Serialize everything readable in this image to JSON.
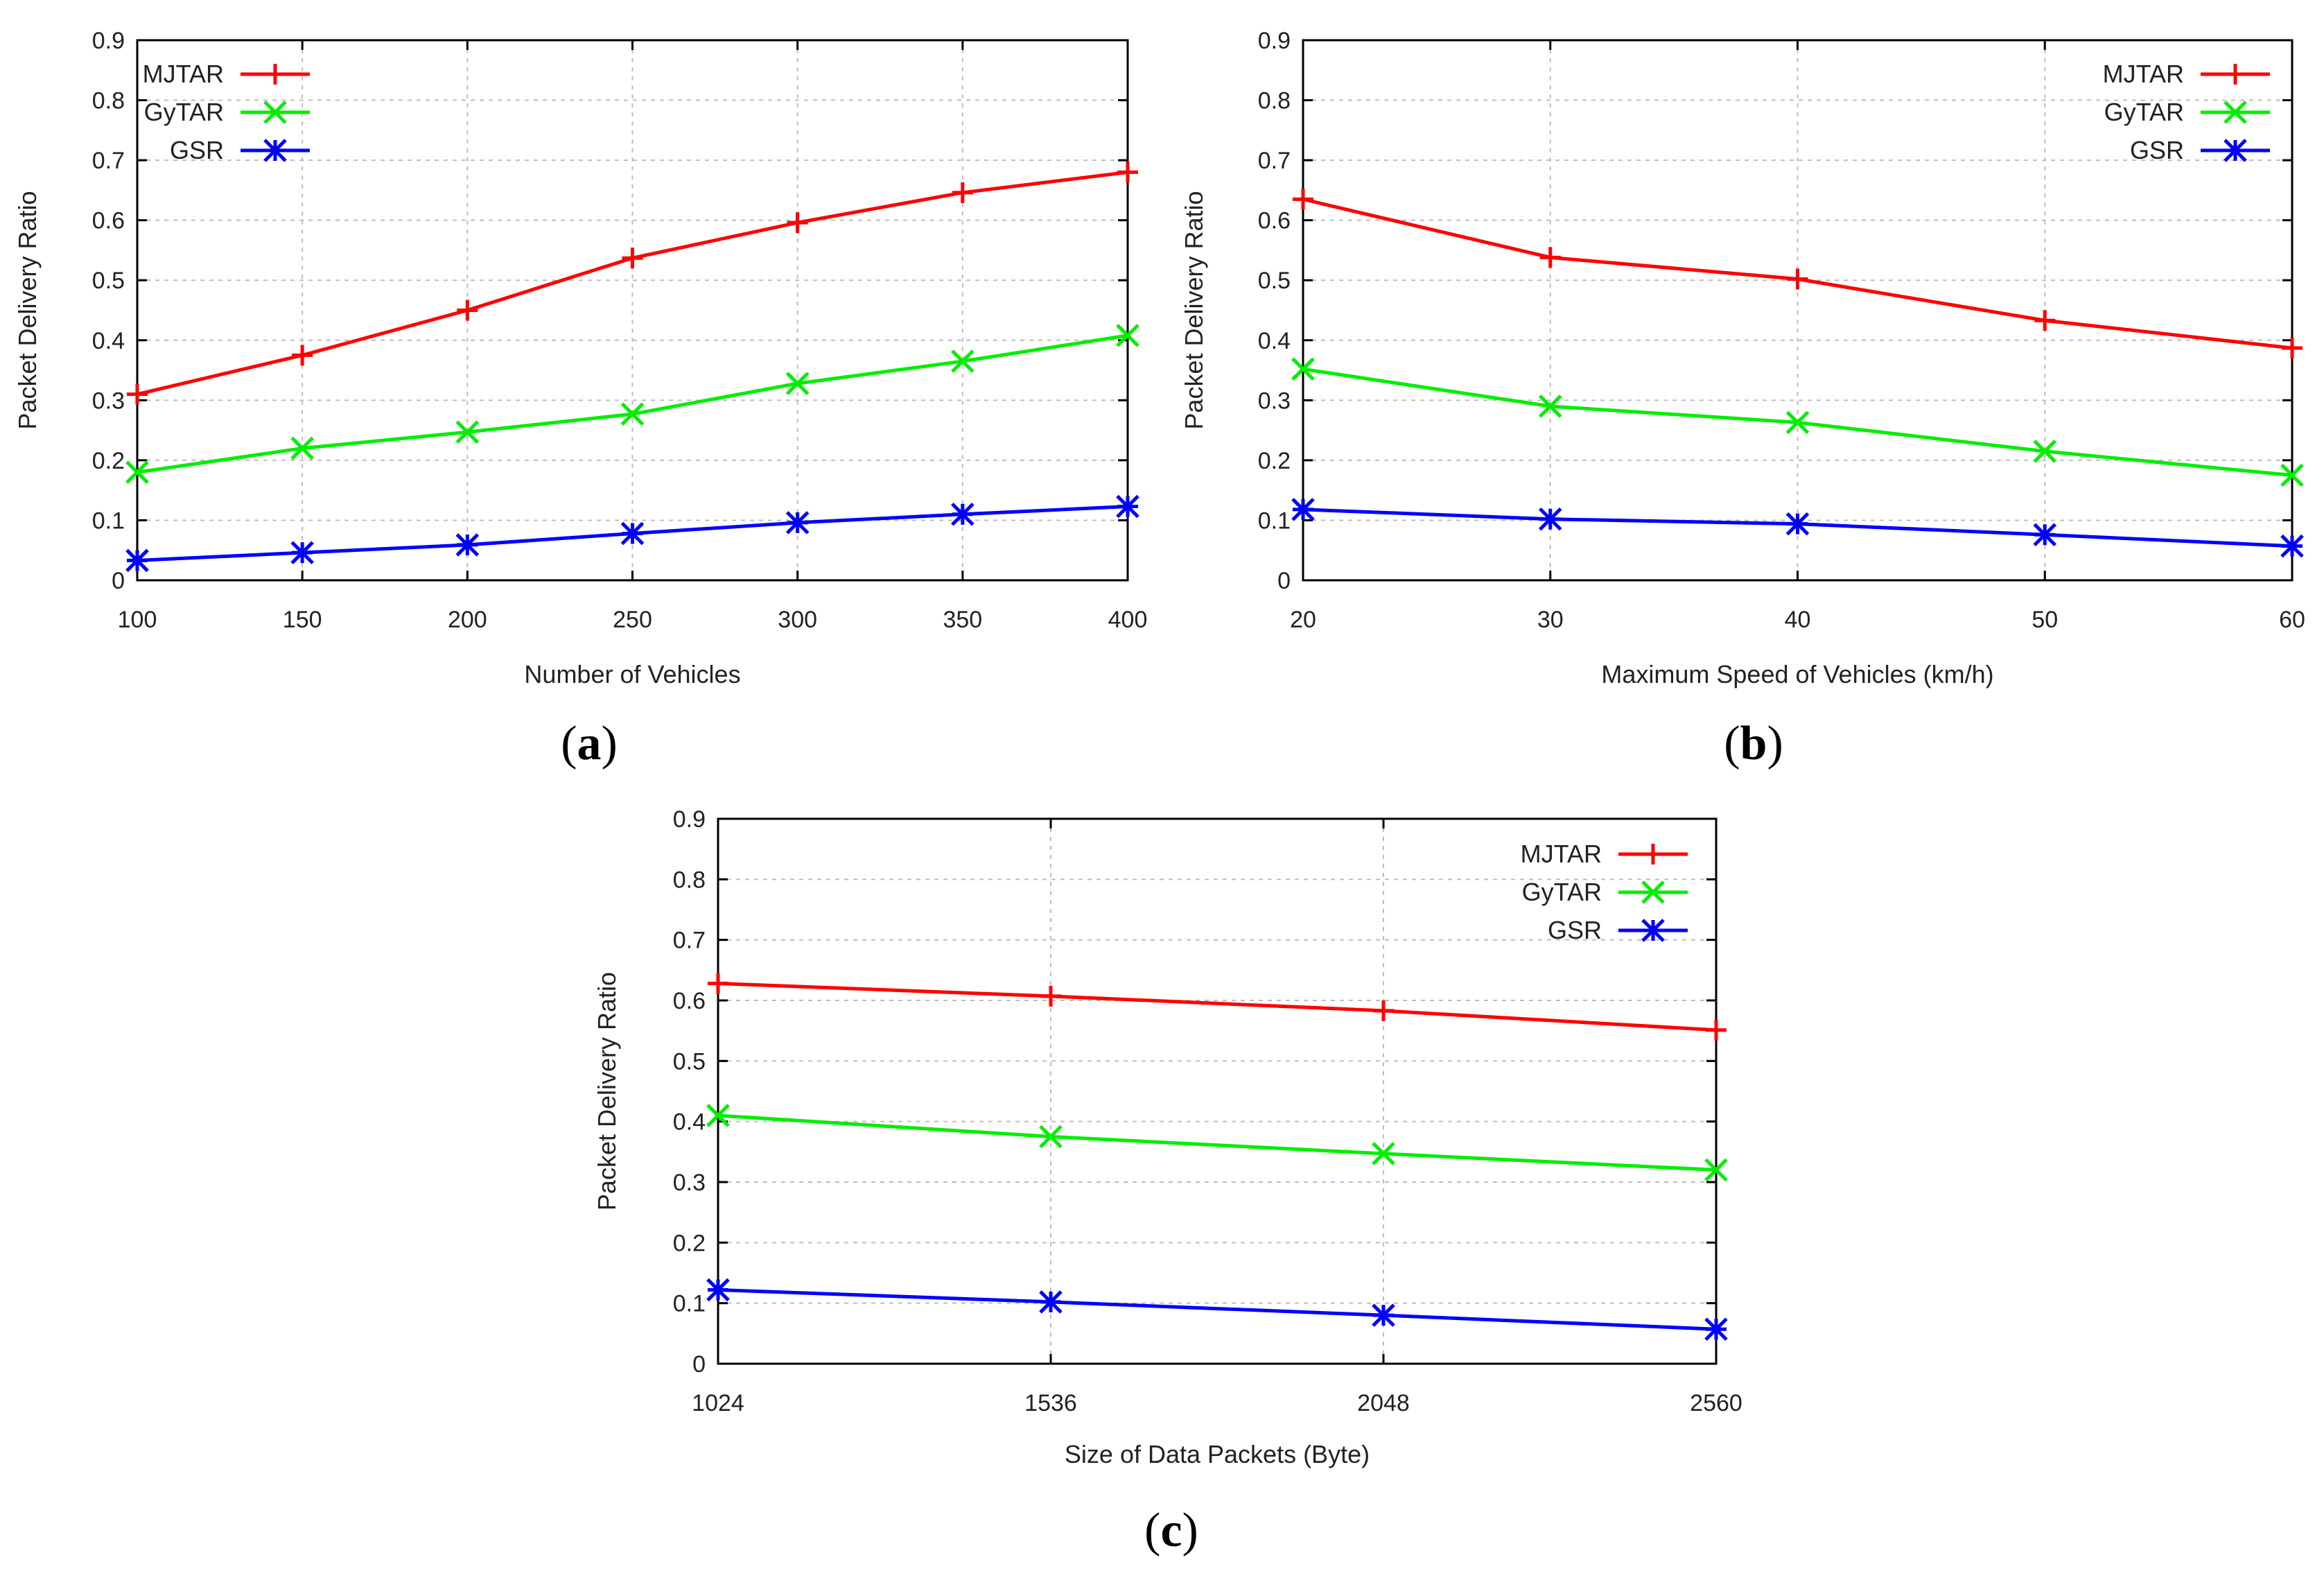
{
  "chart_data": [
    {
      "type": "line",
      "panel": "a",
      "xlabel": "Number of Vehicles",
      "ylabel": "Packet Delivery Ratio",
      "x": [
        100,
        150,
        200,
        250,
        300,
        350,
        400
      ],
      "x_tick_labels": [
        "100",
        "150",
        "200",
        "250",
        "300",
        "350",
        "400"
      ],
      "xlim": [
        100,
        400
      ],
      "ylim": [
        0,
        0.9
      ],
      "y_ticks": [
        0,
        0.1,
        0.2,
        0.3,
        0.4,
        0.5,
        0.6,
        0.7,
        0.8,
        0.9
      ],
      "y_tick_labels": [
        "0",
        "0.1",
        "0.2",
        "0.3",
        "0.4",
        "0.5",
        "0.6",
        "0.7",
        "0.8",
        "0.9"
      ],
      "grid": true,
      "legend_position": "top-left",
      "series": [
        {
          "name": "MJTAR",
          "color": "#ff0000",
          "marker": "plus",
          "values": [
            0.31,
            0.375,
            0.45,
            0.537,
            0.596,
            0.646,
            0.68
          ]
        },
        {
          "name": "GyTAR",
          "color": "#00ee00",
          "marker": "cross",
          "values": [
            0.18,
            0.22,
            0.247,
            0.277,
            0.328,
            0.365,
            0.408
          ]
        },
        {
          "name": "GSR",
          "color": "#0000ff",
          "marker": "star",
          "values": [
            0.033,
            0.046,
            0.059,
            0.078,
            0.096,
            0.11,
            0.123
          ]
        }
      ]
    },
    {
      "type": "line",
      "panel": "b",
      "xlabel": "Maximum Speed of Vehicles (km/h)",
      "ylabel": "Packet Delivery Ratio",
      "x": [
        20,
        30,
        40,
        50,
        60
      ],
      "x_tick_labels": [
        "20",
        "30",
        "40",
        "50",
        "60"
      ],
      "xlim": [
        20,
        60
      ],
      "ylim": [
        0,
        0.9
      ],
      "y_ticks": [
        0,
        0.1,
        0.2,
        0.3,
        0.4,
        0.5,
        0.6,
        0.7,
        0.8,
        0.9
      ],
      "y_tick_labels": [
        "0",
        "0.1",
        "0.2",
        "0.3",
        "0.4",
        "0.5",
        "0.6",
        "0.7",
        "0.8",
        "0.9"
      ],
      "grid": true,
      "legend_position": "top-right",
      "series": [
        {
          "name": "MJTAR",
          "color": "#ff0000",
          "marker": "plus",
          "values": [
            0.635,
            0.538,
            0.502,
            0.433,
            0.387
          ]
        },
        {
          "name": "GyTAR",
          "color": "#00ee00",
          "marker": "cross",
          "values": [
            0.352,
            0.29,
            0.263,
            0.215,
            0.175
          ]
        },
        {
          "name": "GSR",
          "color": "#0000ff",
          "marker": "star",
          "values": [
            0.118,
            0.102,
            0.094,
            0.076,
            0.057
          ]
        }
      ]
    },
    {
      "type": "line",
      "panel": "c",
      "xlabel": "Size of Data Packets (Byte)",
      "ylabel": "Packet Delivery Ratio",
      "x": [
        1024,
        1536,
        2048,
        2560
      ],
      "x_tick_labels": [
        "1024",
        "1536",
        "2048",
        "2560"
      ],
      "xlim": [
        1024,
        2560
      ],
      "ylim": [
        0,
        0.9
      ],
      "y_ticks": [
        0,
        0.1,
        0.2,
        0.3,
        0.4,
        0.5,
        0.6,
        0.7,
        0.8,
        0.9
      ],
      "y_tick_labels": [
        "0",
        "0.1",
        "0.2",
        "0.3",
        "0.4",
        "0.5",
        "0.6",
        "0.7",
        "0.8",
        "0.9"
      ],
      "grid": true,
      "legend_position": "top-right",
      "series": [
        {
          "name": "MJTAR",
          "color": "#ff0000",
          "marker": "plus",
          "values": [
            0.628,
            0.607,
            0.583,
            0.551
          ]
        },
        {
          "name": "GyTAR",
          "color": "#00ee00",
          "marker": "cross",
          "values": [
            0.41,
            0.375,
            0.347,
            0.32
          ]
        },
        {
          "name": "GSR",
          "color": "#0000ff",
          "marker": "star",
          "values": [
            0.122,
            0.102,
            0.08,
            0.057
          ]
        }
      ]
    }
  ],
  "panel_labels": [
    {
      "open": "(",
      "letter": "a",
      "close": ")"
    },
    {
      "open": "(",
      "letter": "b",
      "close": ")"
    },
    {
      "open": "(",
      "letter": "c",
      "close": ")"
    }
  ]
}
